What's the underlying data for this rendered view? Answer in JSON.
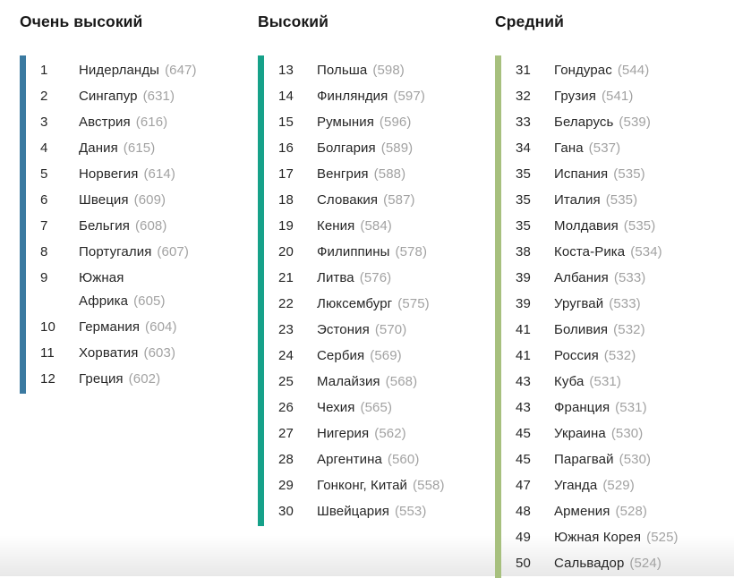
{
  "chart_data": {
    "type": "table",
    "columns": [
      "rank",
      "country",
      "score"
    ],
    "score_format": "parentheses",
    "layout": "three-column ranked list with colored category bars",
    "groups": [
      {
        "label": "Очень высокий",
        "bar_color": "#3b7aa1",
        "rows": [
          [
            1,
            "Нидерланды",
            647
          ],
          [
            2,
            "Сингапур",
            631
          ],
          [
            3,
            "Австрия",
            616
          ],
          [
            4,
            "Дания",
            615
          ],
          [
            5,
            "Норвегия",
            614
          ],
          [
            6,
            "Швеция",
            609
          ],
          [
            7,
            "Бельгия",
            608
          ],
          [
            8,
            "Португалия",
            607
          ],
          [
            9,
            "Южная\nАфрика",
            605
          ],
          [
            10,
            "Германия",
            604
          ],
          [
            11,
            "Хорватия",
            603
          ],
          [
            12,
            "Греция",
            602
          ]
        ]
      },
      {
        "label": "Высокий",
        "bar_color": "#16a189",
        "rows": [
          [
            13,
            "Польша",
            598
          ],
          [
            14,
            "Финляндия",
            597
          ],
          [
            15,
            "Румыния",
            596
          ],
          [
            16,
            "Болгария",
            589
          ],
          [
            17,
            "Венгрия",
            588
          ],
          [
            18,
            "Словакия",
            587
          ],
          [
            19,
            "Кения",
            584
          ],
          [
            20,
            "Филиппины",
            578
          ],
          [
            21,
            "Литва",
            576
          ],
          [
            22,
            "Люксембург",
            575
          ],
          [
            23,
            "Эстония",
            570
          ],
          [
            24,
            "Сербия",
            569
          ],
          [
            25,
            "Малайзия",
            568
          ],
          [
            26,
            "Чехия",
            565
          ],
          [
            27,
            "Нигерия",
            562
          ],
          [
            28,
            "Аргентина",
            560
          ],
          [
            29,
            "Гонконг, Китай",
            558
          ],
          [
            30,
            "Швейцария",
            553
          ]
        ]
      },
      {
        "label": "Средний",
        "bar_color": "#a7c07e",
        "rows": [
          [
            31,
            "Гондурас",
            544
          ],
          [
            32,
            "Грузия",
            541
          ],
          [
            33,
            "Беларусь",
            539
          ],
          [
            34,
            "Гана",
            537
          ],
          [
            35,
            "Испания",
            535
          ],
          [
            35,
            "Италия",
            535
          ],
          [
            35,
            "Молдавия",
            535
          ],
          [
            38,
            "Коста-Рика",
            534
          ],
          [
            39,
            "Албания",
            533
          ],
          [
            39,
            "Уругвай",
            533
          ],
          [
            41,
            "Боливия",
            532
          ],
          [
            41,
            "Россия",
            532
          ],
          [
            43,
            "Куба",
            531
          ],
          [
            43,
            "Франция",
            531
          ],
          [
            45,
            "Украина",
            530
          ],
          [
            45,
            "Парагвай",
            530
          ],
          [
            47,
            "Уганда",
            529
          ],
          [
            48,
            "Армения",
            528
          ],
          [
            49,
            "Южная Корея",
            525
          ],
          [
            50,
            "Сальвадор",
            524
          ]
        ]
      }
    ]
  }
}
